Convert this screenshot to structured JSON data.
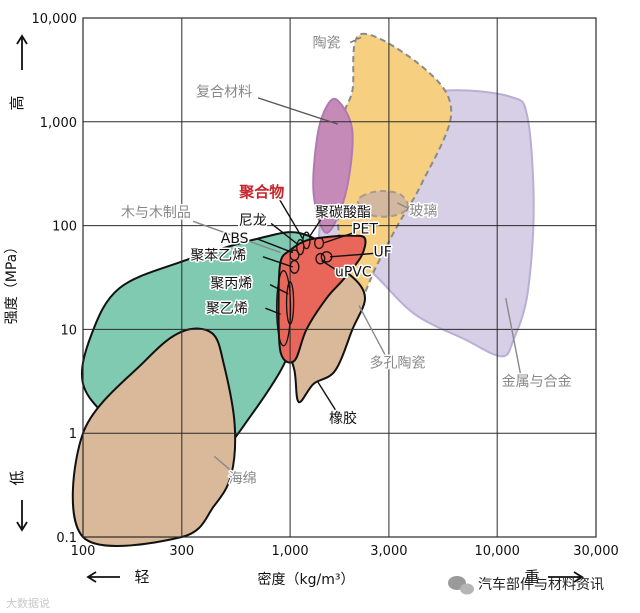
{
  "chart_data": {
    "type": "area",
    "xlabel": "密度（kg/m³）",
    "ylabel": "强度（MPa）",
    "xscale": "log",
    "yscale": "log",
    "xlim": [
      100,
      30000
    ],
    "ylim": [
      0.1,
      10000
    ],
    "xticks": [
      {
        "v": 100,
        "label": "100"
      },
      {
        "v": 300,
        "label": "300"
      },
      {
        "v": 1000,
        "label": "1,000"
      },
      {
        "v": 3000,
        "label": "3,000"
      },
      {
        "v": 10000,
        "label": "10,000"
      },
      {
        "v": 30000,
        "label": "30,000"
      }
    ],
    "yticks": [
      {
        "v": 0.1,
        "label": "0.1"
      },
      {
        "v": 1,
        "label": "1"
      },
      {
        "v": 10,
        "label": "10"
      },
      {
        "v": 100,
        "label": "100"
      },
      {
        "v": 1000,
        "label": "1,000"
      },
      {
        "v": 10000,
        "label": "10,000"
      }
    ],
    "grid": true,
    "x_direction_labels": {
      "low": "轻",
      "high": "重"
    },
    "y_direction_labels": {
      "low": "低",
      "high": "高"
    },
    "regions": [
      {
        "name": "金属与合金",
        "fill": "#d6cfe6",
        "stroke": "#b9aed4",
        "dash": false,
        "points": [
          [
            1700,
            60
          ],
          [
            1350,
            30
          ],
          [
            1600,
            800
          ],
          [
            2400,
            1450
          ],
          [
            5500,
            2000
          ],
          [
            11500,
            1750
          ],
          [
            14000,
            1100
          ],
          [
            15000,
            150
          ],
          [
            14000,
            22
          ],
          [
            12000,
            8
          ],
          [
            10500,
            5.5
          ],
          [
            7000,
            8
          ],
          [
            4000,
            14
          ],
          [
            2500,
            35
          ]
        ]
      },
      {
        "name": "陶瓷",
        "fill": "#f6cf80",
        "stroke": "#8a8a8a",
        "dash": true,
        "points": [
          [
            2200,
            7000
          ],
          [
            4500,
            3200
          ],
          [
            6000,
            1200
          ],
          [
            4300,
            250
          ],
          [
            3300,
            100
          ],
          [
            2600,
            40
          ],
          [
            2150,
            18
          ],
          [
            1900,
            25
          ],
          [
            1700,
            120
          ],
          [
            1800,
            1000
          ],
          [
            2000,
            2000
          ]
        ]
      },
      {
        "name": "复合材料",
        "fill": "#c58ab8",
        "stroke": "#b07ab0",
        "dash": false,
        "points": [
          [
            1500,
            1400
          ],
          [
            1700,
            1600
          ],
          [
            2000,
            800
          ],
          [
            1850,
            200
          ],
          [
            1500,
            85
          ],
          [
            1300,
            200
          ],
          [
            1350,
            700
          ]
        ]
      },
      {
        "name": "玻璃",
        "fill": "#d3b79e",
        "stroke": "#a89a8e",
        "dash": true,
        "points": [
          [
            2200,
            190
          ],
          [
            2700,
            215
          ],
          [
            3400,
            200
          ],
          [
            3700,
            150
          ],
          [
            3200,
            125
          ],
          [
            2500,
            125
          ],
          [
            2150,
            160
          ]
        ]
      },
      {
        "name": "木与木制品",
        "fill": "#7fcab0",
        "stroke": "#111111",
        "dash": false,
        "points": [
          [
            100,
            3
          ],
          [
            110,
            9
          ],
          [
            150,
            25
          ],
          [
            300,
            45
          ],
          [
            700,
            75
          ],
          [
            1100,
            85
          ],
          [
            1500,
            55
          ],
          [
            1300,
            20
          ],
          [
            1050,
            8
          ],
          [
            900,
            4
          ],
          [
            650,
            1.5
          ],
          [
            450,
            0.6
          ],
          [
            260,
            0.3
          ],
          [
            140,
            1.2
          ]
        ]
      },
      {
        "name": "海绵",
        "fill": "#d9b99a",
        "stroke": "#111111",
        "dash": false,
        "points": [
          [
            100,
            1
          ],
          [
            200,
            5
          ],
          [
            300,
            9.5
          ],
          [
            420,
            9.2
          ],
          [
            480,
            4.5
          ],
          [
            540,
            1.2
          ],
          [
            520,
            0.4
          ],
          [
            430,
            0.2
          ],
          [
            300,
            0.1
          ],
          [
            100,
            0.1
          ]
        ]
      },
      {
        "name": "橡胶",
        "fill": "#d9b99a",
        "stroke": "#111111",
        "dash": false,
        "points": [
          [
            950,
            9
          ],
          [
            1050,
            4
          ],
          [
            1100,
            2
          ],
          [
            1300,
            3
          ],
          [
            1650,
            4
          ],
          [
            2000,
            10
          ],
          [
            2300,
            20
          ],
          [
            2000,
            32
          ],
          [
            1500,
            42
          ],
          [
            1050,
            28
          ]
        ]
      },
      {
        "name": "聚合物",
        "fill": "#e8665a",
        "stroke": "#111111",
        "dash": false,
        "points": [
          [
            1000,
            58
          ],
          [
            1200,
            72
          ],
          [
            1550,
            78
          ],
          [
            2000,
            80
          ],
          [
            2300,
            75
          ],
          [
            2200,
            50
          ],
          [
            1800,
            30
          ],
          [
            1500,
            20
          ],
          [
            1200,
            10
          ],
          [
            1050,
            5
          ],
          [
            900,
            6
          ],
          [
            880,
            20
          ],
          [
            900,
            45
          ]
        ]
      }
    ],
    "sub_shapes": [
      {
        "name": "聚乙烯",
        "x": 930,
        "y": 16,
        "rx_factor": 1.08,
        "ry_factor": 2.3
      },
      {
        "name": "聚丙烯",
        "x": 1000,
        "y": 18,
        "rx_factor": 1.04,
        "ry_factor": 1.6
      },
      {
        "name": "尼龙",
        "x": 1120,
        "y": 62,
        "rx_factor": 1.04,
        "ry_factor": 1.18
      },
      {
        "name": "ABS",
        "x": 1050,
        "y": 52,
        "rx_factor": 1.05,
        "ry_factor": 1.12
      },
      {
        "name": "聚苯乙烯",
        "x": 1050,
        "y": 40,
        "rx_factor": 1.05,
        "ry_factor": 1.15
      },
      {
        "name": "PET",
        "x": 1380,
        "y": 68,
        "rx_factor": 1.05,
        "ry_factor": 1.13
      },
      {
        "name": "聚碳酸酯",
        "x": 1200,
        "y": 72,
        "rx_factor": 1.04,
        "ry_factor": 1.2
      },
      {
        "name": "UF",
        "x": 1500,
        "y": 50,
        "rx_factor": 1.06,
        "ry_factor": 1.12
      },
      {
        "name": "uPVC",
        "x": 1400,
        "y": 48,
        "rx_factor": 1.05,
        "ry_factor": 1.12
      }
    ],
    "labels": [
      {
        "text": "陶瓷",
        "x": 1500,
        "y": 5800,
        "color": "#888888",
        "bold": false
      },
      {
        "text": "复合材料",
        "x": 480,
        "y": 1950,
        "color": "#888888",
        "bold": false
      },
      {
        "text": "聚合物",
        "x": 730,
        "y": 210,
        "color": "#c8262d",
        "bold": true
      },
      {
        "text": "聚碳酸酯",
        "x": 1800,
        "y": 135,
        "color": "#111111",
        "bold": false
      },
      {
        "text": "玻璃",
        "x": 4400,
        "y": 140,
        "color": "#888888",
        "bold": false
      },
      {
        "text": "木与木制品",
        "x": 225,
        "y": 135,
        "color": "#888888",
        "bold": false
      },
      {
        "text": "尼龙",
        "x": 660,
        "y": 113,
        "color": "#111111",
        "bold": false
      },
      {
        "text": "PET",
        "x": 2300,
        "y": 94,
        "color": "#111111",
        "bold": false
      },
      {
        "text": "ABS",
        "x": 540,
        "y": 76,
        "color": "#111111",
        "bold": false
      },
      {
        "text": "聚苯乙烯",
        "x": 450,
        "y": 52,
        "color": "#111111",
        "bold": false
      },
      {
        "text": "UF",
        "x": 2800,
        "y": 56,
        "color": "#111111",
        "bold": false
      },
      {
        "text": "聚丙烯",
        "x": 520,
        "y": 28,
        "color": "#111111",
        "bold": false
      },
      {
        "text": "uPVC",
        "x": 2020,
        "y": 36,
        "color": "#111111",
        "bold": false
      },
      {
        "text": "聚乙烯",
        "x": 495,
        "y": 16,
        "color": "#111111",
        "bold": false
      },
      {
        "text": "多孔陶瓷",
        "x": 3300,
        "y": 4.8,
        "color": "#888888",
        "bold": false
      },
      {
        "text": "金属与合金",
        "x": 15500,
        "y": 3.2,
        "color": "#888888",
        "bold": false
      },
      {
        "text": "橡胶",
        "x": 1800,
        "y": 1.4,
        "color": "#111111",
        "bold": false
      },
      {
        "text": "海绵",
        "x": 590,
        "y": 0.37,
        "color": "#888888",
        "bold": false
      }
    ],
    "leaders": [
      {
        "from": [
          1950,
          5800
        ],
        "to": [
          2200,
          6500
        ],
        "color": "#777777",
        "dashed": true
      },
      {
        "from": [
          700,
          1700
        ],
        "to": [
          1700,
          950
        ],
        "color": "#555555",
        "dashed": false
      },
      {
        "from": [
          880,
          185
        ],
        "to": [
          1150,
          75
        ],
        "color": "#111111",
        "dashed": false
      },
      {
        "from": [
          1450,
          125
        ],
        "to": [
          1250,
          80
        ],
        "color": "#111111",
        "dashed": false
      },
      {
        "from": [
          3900,
          140
        ],
        "to": [
          3300,
          165
        ],
        "color": "#888888",
        "dashed": false
      },
      {
        "from": [
          340,
          110
        ],
        "to": [
          900,
          55
        ],
        "color": "#888888",
        "dashed": false
      },
      {
        "from": [
          810,
          105
        ],
        "to": [
          1100,
          65
        ],
        "color": "#111111",
        "dashed": false
      },
      {
        "from": [
          2050,
          86
        ],
        "to": [
          1450,
          68
        ],
        "color": "#111111",
        "dashed": false
      },
      {
        "from": [
          700,
          74
        ],
        "to": [
          1030,
          55
        ],
        "color": "#111111",
        "dashed": false
      },
      {
        "from": [
          740,
          50
        ],
        "to": [
          1030,
          40
        ],
        "color": "#111111",
        "dashed": false
      },
      {
        "from": [
          2550,
          54
        ],
        "to": [
          1560,
          50
        ],
        "color": "#111111",
        "dashed": false
      },
      {
        "from": [
          800,
          27
        ],
        "to": [
          980,
          22
        ],
        "color": "#111111",
        "dashed": false
      },
      {
        "from": [
          1800,
          34
        ],
        "to": [
          1420,
          46
        ],
        "color": "#111111",
        "dashed": false
      },
      {
        "from": [
          760,
          16
        ],
        "to": [
          900,
          14
        ],
        "color": "#111111",
        "dashed": false
      },
      {
        "from": [
          2900,
          5.5
        ],
        "to": [
          2150,
          17
        ],
        "color": "#888888",
        "dashed": false
      },
      {
        "from": [
          13000,
          3.6
        ],
        "to": [
          11000,
          20
        ],
        "color": "#888888",
        "dashed": false
      },
      {
        "from": [
          1680,
          1.6
        ],
        "to": [
          1350,
          3.2
        ],
        "color": "#111111",
        "dashed": false
      },
      {
        "from": [
          530,
          0.42
        ],
        "to": [
          430,
          0.6
        ],
        "color": "#888888",
        "dashed": false
      }
    ]
  },
  "watermark": {
    "text": "汽车部件与材料资讯"
  },
  "corner_watermark": {
    "text": "大数据说"
  }
}
